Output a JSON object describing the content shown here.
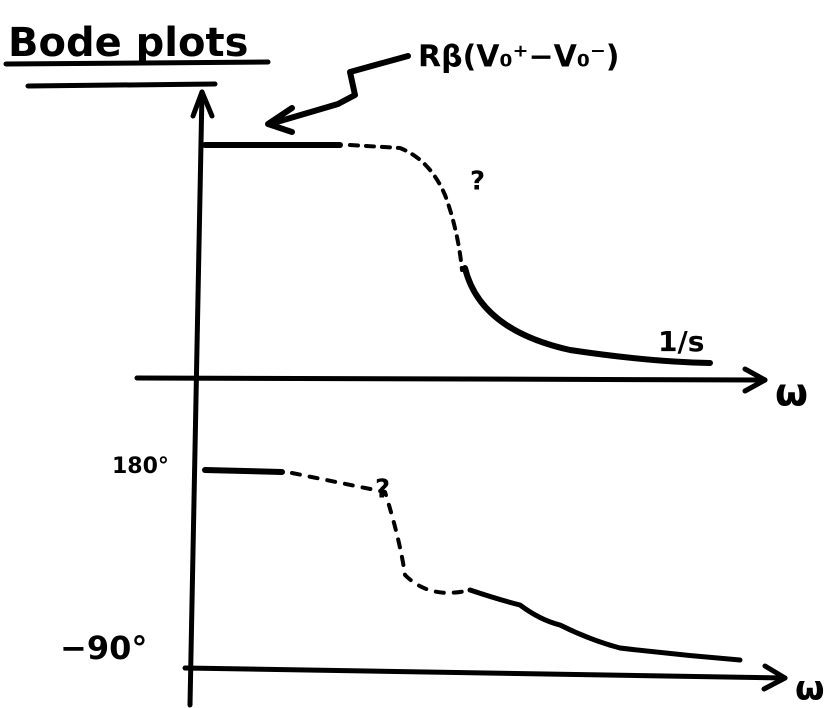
{
  "title": "Bode plots",
  "annotation": "Rβ(V₀⁺−V₀⁻)",
  "magnitude_plot": {
    "slope_label": "1/s",
    "x_axis_label": "ω",
    "question_mark": "?"
  },
  "phase_plot": {
    "top_label": "180°",
    "bottom_label": "−90°",
    "x_axis_label": "ω",
    "question_mark": "?"
  }
}
